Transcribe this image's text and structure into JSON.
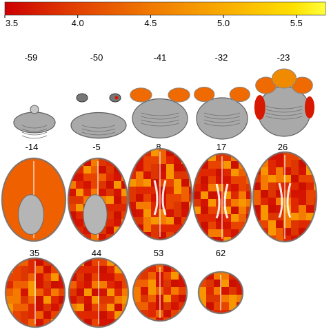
{
  "colorbar": {
    "tick_labels": [
      "3.5",
      "4.0",
      "4.5",
      "5.0",
      "5.5"
    ],
    "tick_values": [
      3.5,
      4.0,
      4.5,
      5.0,
      5.5
    ],
    "range": [
      3.5,
      5.7
    ],
    "gradient_colors": [
      "#cc0000",
      "#e03a00",
      "#f07800",
      "#f9b000",
      "#ffe000",
      "#ffff3c"
    ]
  },
  "slices": [
    {
      "label": "-59",
      "z": -59
    },
    {
      "label": "-50",
      "z": -50
    },
    {
      "label": "-41",
      "z": -41
    },
    {
      "label": "-32",
      "z": -32
    },
    {
      "label": "-23",
      "z": -23
    },
    {
      "label": "-14",
      "z": -14
    },
    {
      "label": "-5",
      "z": -5
    },
    {
      "label": "8",
      "z": 8
    },
    {
      "label": "17",
      "z": 17
    },
    {
      "label": "26",
      "z": 26
    },
    {
      "label": "35",
      "z": 35
    },
    {
      "label": "44",
      "z": 44
    },
    {
      "label": "53",
      "z": 53
    },
    {
      "label": "62",
      "z": 62
    }
  ],
  "colors": {
    "brain_gray": "#a9a9a9",
    "brain_dark": "#5e5e5e",
    "overlay_red": "#d81800",
    "overlay_orange": "#ef6a00"
  }
}
